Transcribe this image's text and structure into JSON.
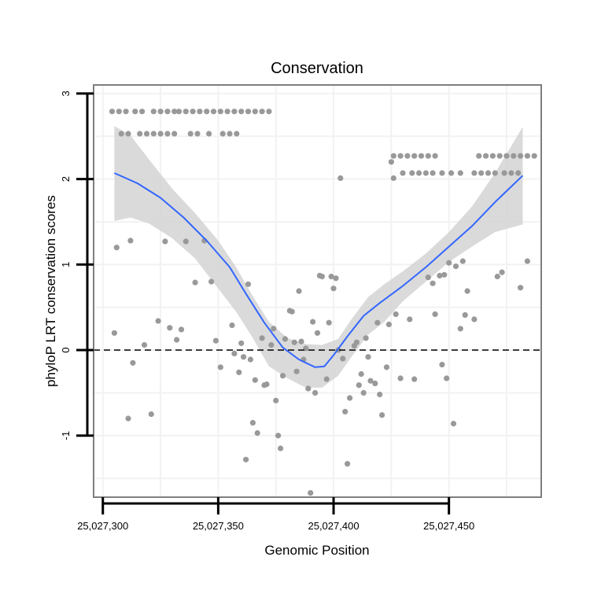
{
  "chart_data": {
    "type": "scatter",
    "title": "Conservation",
    "xlabel": "Genomic Position",
    "ylabel": "phyloP LRT conservation scores",
    "xlim": [
      25027296,
      25027490
    ],
    "ylim": [
      -1.72,
      3.1
    ],
    "x_ticks": [
      25027300,
      25027350,
      25027400,
      25027450
    ],
    "x_tick_labels": [
      "25,027,300",
      "25,027,350",
      "25,027,400",
      "25,027,450"
    ],
    "y_ticks": [
      -1,
      0,
      1,
      2,
      3
    ],
    "y_tick_labels": [
      "-1",
      "0",
      "1",
      "2",
      "3"
    ],
    "reference_line": {
      "y": 0,
      "style": "dashed"
    },
    "grid": true,
    "colors": {
      "points": "#999999",
      "smooth": "#3366ff",
      "band": "#d3d3d3",
      "frame": "#7f7f7f"
    },
    "series": [
      {
        "name": "points",
        "points": [
          [
            25027304,
            2.79
          ],
          [
            25027307,
            2.79
          ],
          [
            25027310,
            2.79
          ],
          [
            25027314,
            2.79
          ],
          [
            25027317,
            2.79
          ],
          [
            25027322,
            2.79
          ],
          [
            25027325,
            2.79
          ],
          [
            25027328,
            2.79
          ],
          [
            25027331,
            2.79
          ],
          [
            25027333,
            2.79
          ],
          [
            25027336,
            2.79
          ],
          [
            25027339,
            2.79
          ],
          [
            25027342,
            2.79
          ],
          [
            25027345,
            2.79
          ],
          [
            25027348,
            2.79
          ],
          [
            25027351,
            2.79
          ],
          [
            25027354,
            2.79
          ],
          [
            25027357,
            2.79
          ],
          [
            25027360,
            2.79
          ],
          [
            25027363,
            2.79
          ],
          [
            25027366,
            2.79
          ],
          [
            25027369,
            2.79
          ],
          [
            25027372,
            2.79
          ],
          [
            25027308,
            2.53
          ],
          [
            25027311,
            2.53
          ],
          [
            25027316,
            2.53
          ],
          [
            25027319,
            2.53
          ],
          [
            25027322,
            2.53
          ],
          [
            25027325,
            2.53
          ],
          [
            25027328,
            2.53
          ],
          [
            25027331,
            2.53
          ],
          [
            25027338,
            2.53
          ],
          [
            25027341,
            2.53
          ],
          [
            25027346,
            2.53
          ],
          [
            25027352,
            2.53
          ],
          [
            25027355,
            2.53
          ],
          [
            25027358,
            2.53
          ],
          [
            25027426,
            2.27
          ],
          [
            25027429,
            2.27
          ],
          [
            25027432,
            2.27
          ],
          [
            25027435,
            2.27
          ],
          [
            25027438,
            2.27
          ],
          [
            25027441,
            2.27
          ],
          [
            25027444,
            2.27
          ],
          [
            25027463,
            2.27
          ],
          [
            25027466,
            2.27
          ],
          [
            25027469,
            2.27
          ],
          [
            25027472,
            2.27
          ],
          [
            25027475,
            2.27
          ],
          [
            25027478,
            2.27
          ],
          [
            25027481,
            2.27
          ],
          [
            25027484,
            2.27
          ],
          [
            25027487,
            2.27
          ],
          [
            25027425,
            2.2
          ],
          [
            25027430,
            2.07
          ],
          [
            25027434,
            2.07
          ],
          [
            25027437,
            2.07
          ],
          [
            25027440,
            2.07
          ],
          [
            25027443,
            2.07
          ],
          [
            25027447,
            2.07
          ],
          [
            25027451,
            2.07
          ],
          [
            25027455,
            2.07
          ],
          [
            25027461,
            2.07
          ],
          [
            25027464,
            2.07
          ],
          [
            25027467,
            2.07
          ],
          [
            25027470,
            2.07
          ],
          [
            25027474,
            2.07
          ],
          [
            25027477,
            2.07
          ],
          [
            25027480,
            2.07
          ],
          [
            25027403,
            2.01
          ],
          [
            25027426,
            2.01
          ],
          [
            25027306,
            1.2
          ],
          [
            25027312,
            1.28
          ],
          [
            25027327,
            1.27
          ],
          [
            25027336,
            1.27
          ],
          [
            25027344,
            1.28
          ],
          [
            25027347,
            0.8
          ],
          [
            25027340,
            0.79
          ],
          [
            25027305,
            0.2
          ],
          [
            25027313,
            -0.15
          ],
          [
            25027311,
            -0.8
          ],
          [
            25027318,
            0.06
          ],
          [
            25027321,
            -0.75
          ],
          [
            25027324,
            0.34
          ],
          [
            25027329,
            0.26
          ],
          [
            25027332,
            0.12
          ],
          [
            25027334,
            0.24
          ],
          [
            25027349,
            0.11
          ],
          [
            25027351,
            -0.2
          ],
          [
            25027356,
            0.29
          ],
          [
            25027360,
            0.08
          ],
          [
            25027359,
            -0.26
          ],
          [
            25027361,
            -0.08
          ],
          [
            25027363,
            0.77
          ],
          [
            25027362,
            -1.28
          ],
          [
            25027365,
            -0.85
          ],
          [
            25027366,
            -0.35
          ],
          [
            25027367,
            -0.97
          ],
          [
            25027364,
            -0.11
          ],
          [
            25027357,
            -0.04
          ],
          [
            25027369,
            0.14
          ],
          [
            25027370,
            -0.41
          ],
          [
            25027371,
            -0.4
          ],
          [
            25027373,
            0.06
          ],
          [
            25027374,
            0.25
          ],
          [
            25027375,
            -0.59
          ],
          [
            25027376,
            -1.0
          ],
          [
            25027377,
            -1.15
          ],
          [
            25027378,
            -0.3
          ],
          [
            25027379,
            0.13
          ],
          [
            25027381,
            0.46
          ],
          [
            25027382,
            0.45
          ],
          [
            25027383,
            0.09
          ],
          [
            25027384,
            -0.25
          ],
          [
            25027385,
            0.69
          ],
          [
            25027386,
            0.1
          ],
          [
            25027387,
            -0.11
          ],
          [
            25027388,
            0.02
          ],
          [
            25027389,
            -0.45
          ],
          [
            25027390,
            -1.67
          ],
          [
            25027391,
            0.33
          ],
          [
            25027392,
            -0.5
          ],
          [
            25027393,
            0.2
          ],
          [
            25027394,
            0.87
          ],
          [
            25027395,
            0.86
          ],
          [
            25027397,
            -0.34
          ],
          [
            25027398,
            0.32
          ],
          [
            25027399,
            0.86
          ],
          [
            25027400,
            0.72
          ],
          [
            25027401,
            0.84
          ],
          [
            25027402,
            0.0
          ],
          [
            25027404,
            -0.1
          ],
          [
            25027405,
            -0.72
          ],
          [
            25027406,
            -1.33
          ],
          [
            25027407,
            -0.56
          ],
          [
            25027409,
            0.05
          ],
          [
            25027410,
            0.09
          ],
          [
            25027411,
            -0.41
          ],
          [
            25027412,
            -0.28
          ],
          [
            25027413,
            -0.5
          ],
          [
            25027414,
            0.14
          ],
          [
            25027415,
            -0.08
          ],
          [
            25027416,
            -0.36
          ],
          [
            25027418,
            -0.39
          ],
          [
            25027419,
            0.32
          ],
          [
            25027420,
            -0.52
          ],
          [
            25027421,
            -0.76
          ],
          [
            25027423,
            -0.2
          ],
          [
            25027424,
            0.3
          ],
          [
            25027427,
            0.42
          ],
          [
            25027429,
            -0.33
          ],
          [
            25027433,
            0.36
          ],
          [
            25027435,
            -0.34
          ],
          [
            25027441,
            0.85
          ],
          [
            25027443,
            0.78
          ],
          [
            25027444,
            0.42
          ],
          [
            25027446,
            0.87
          ],
          [
            25027447,
            -0.17
          ],
          [
            25027448,
            0.88
          ],
          [
            25027449,
            -0.33
          ],
          [
            25027450,
            1.02
          ],
          [
            25027452,
            -0.86
          ],
          [
            25027453,
            0.98
          ],
          [
            25027455,
            0.25
          ],
          [
            25027456,
            1.04
          ],
          [
            25027457,
            0.41
          ],
          [
            25027458,
            0.69
          ],
          [
            25027461,
            0.36
          ],
          [
            25027471,
            0.86
          ],
          [
            25027473,
            0.91
          ],
          [
            25027481,
            0.73
          ],
          [
            25027484,
            1.04
          ]
        ]
      },
      {
        "name": "loess",
        "line": [
          [
            25027305,
            2.07
          ],
          [
            25027315,
            1.95
          ],
          [
            25027325,
            1.78
          ],
          [
            25027335,
            1.55
          ],
          [
            25027345,
            1.28
          ],
          [
            25027355,
            0.97
          ],
          [
            25027362,
            0.66
          ],
          [
            25027370,
            0.32
          ],
          [
            25027378,
            0.03
          ],
          [
            25027385,
            -0.11
          ],
          [
            25027392,
            -0.2
          ],
          [
            25027396,
            -0.19
          ],
          [
            25027400,
            -0.06
          ],
          [
            25027406,
            0.16
          ],
          [
            25027413,
            0.4
          ],
          [
            25027420,
            0.55
          ],
          [
            25027430,
            0.75
          ],
          [
            25027440,
            0.97
          ],
          [
            25027450,
            1.21
          ],
          [
            25027460,
            1.45
          ],
          [
            25027470,
            1.73
          ],
          [
            25027482,
            2.04
          ]
        ],
        "upper": [
          [
            25027305,
            2.62
          ],
          [
            25027312,
            2.51
          ],
          [
            25027320,
            2.23
          ],
          [
            25027330,
            1.89
          ],
          [
            25027340,
            1.6
          ],
          [
            25027350,
            1.28
          ],
          [
            25027358,
            0.96
          ],
          [
            25027365,
            0.63
          ],
          [
            25027372,
            0.33
          ],
          [
            25027380,
            0.14
          ],
          [
            25027388,
            0.07
          ],
          [
            25027395,
            0.06
          ],
          [
            25027402,
            0.13
          ],
          [
            25027408,
            0.37
          ],
          [
            25027415,
            0.62
          ],
          [
            25027422,
            0.77
          ],
          [
            25027430,
            0.92
          ],
          [
            25027440,
            1.13
          ],
          [
            25027450,
            1.38
          ],
          [
            25027460,
            1.68
          ],
          [
            25027470,
            2.07
          ],
          [
            25027482,
            2.61
          ]
        ],
        "lower": [
          [
            25027305,
            1.51
          ],
          [
            25027312,
            1.55
          ],
          [
            25027320,
            1.48
          ],
          [
            25027330,
            1.31
          ],
          [
            25027340,
            1.07
          ],
          [
            25027350,
            0.72
          ],
          [
            25027358,
            0.44
          ],
          [
            25027365,
            0.14
          ],
          [
            25027372,
            -0.19
          ],
          [
            25027380,
            -0.33
          ],
          [
            25027388,
            -0.44
          ],
          [
            25027395,
            -0.44
          ],
          [
            25027402,
            -0.3
          ],
          [
            25027408,
            -0.07
          ],
          [
            25027415,
            0.18
          ],
          [
            25027422,
            0.33
          ],
          [
            25027430,
            0.57
          ],
          [
            25027440,
            0.8
          ],
          [
            25027450,
            1.03
          ],
          [
            25027460,
            1.21
          ],
          [
            25027470,
            1.38
          ],
          [
            25027482,
            1.47
          ]
        ]
      }
    ]
  }
}
